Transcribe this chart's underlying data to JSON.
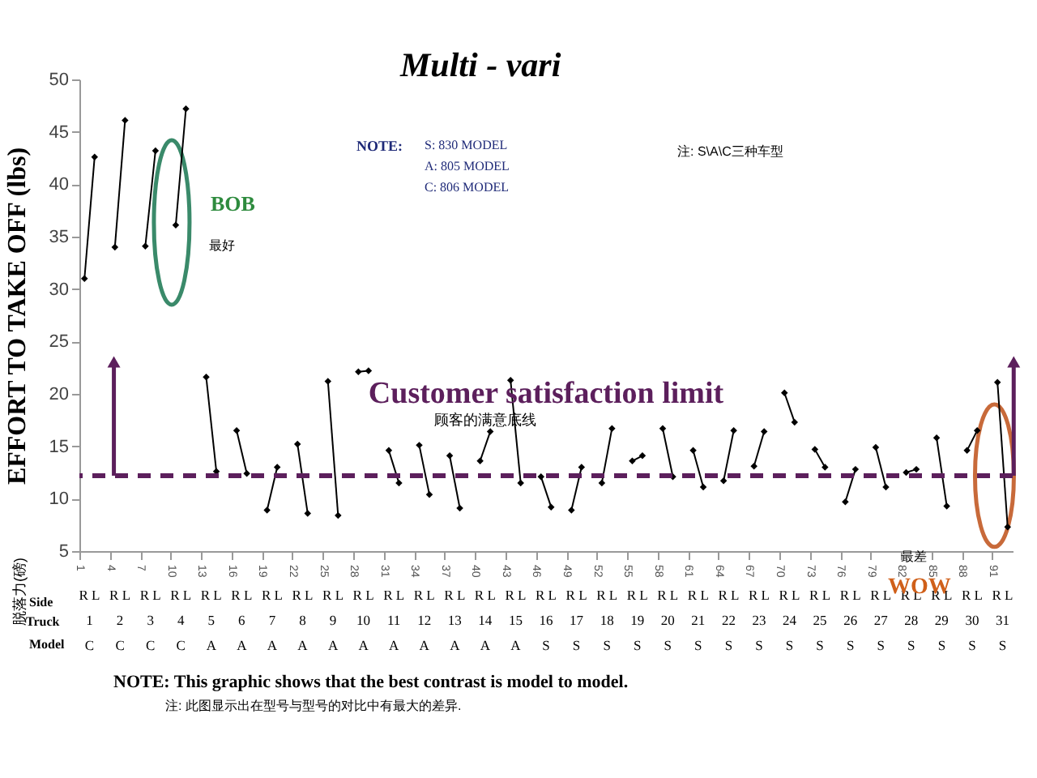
{
  "chart_data": {
    "type": "line",
    "title": "Multi - vari",
    "ylabel": "EFFORT TO TAKE OFF (lbs)",
    "xlim": [
      1,
      93
    ],
    "xticks": [
      1,
      4,
      7,
      10,
      13,
      16,
      19,
      22,
      25,
      28,
      31,
      34,
      37,
      40,
      43,
      46,
      49,
      52,
      55,
      58,
      61,
      64,
      67,
      70,
      73,
      76,
      79,
      82,
      85,
      88,
      91
    ],
    "ylim": [
      5,
      50
    ],
    "yticks": [
      5,
      10,
      15,
      20,
      25,
      30,
      35,
      40,
      45,
      50
    ],
    "grid": false,
    "marker": "diamond",
    "legend": false,
    "series": [
      {
        "color": "#000000",
        "x": [
          1.5,
          2.5
        ],
        "values": [
          31.0,
          42.6
        ]
      },
      {
        "color": "#000000",
        "x": [
          4.5,
          5.5
        ],
        "values": [
          34.0,
          46.1
        ]
      },
      {
        "color": "#000000",
        "x": [
          7.5,
          8.5
        ],
        "values": [
          34.1,
          43.2
        ]
      },
      {
        "color": "#000000",
        "x": [
          10.5,
          11.5
        ],
        "values": [
          36.1,
          47.2
        ]
      },
      {
        "color": "#000000",
        "x": [
          13.5,
          14.5
        ],
        "values": [
          21.6,
          12.6
        ]
      },
      {
        "color": "#000000",
        "x": [
          16.5,
          17.5
        ],
        "values": [
          16.5,
          12.4
        ]
      },
      {
        "color": "#000000",
        "x": [
          19.5,
          20.5
        ],
        "values": [
          8.9,
          13.0
        ]
      },
      {
        "color": "#000000",
        "x": [
          22.5,
          23.5
        ],
        "values": [
          15.2,
          8.6
        ]
      },
      {
        "color": "#000000",
        "x": [
          25.5,
          26.5
        ],
        "values": [
          21.2,
          8.4
        ]
      },
      {
        "color": "#000000",
        "x": [
          28.5,
          29.5
        ],
        "values": [
          22.1,
          22.2
        ]
      },
      {
        "color": "#000000",
        "x": [
          31.5,
          32.5
        ],
        "values": [
          14.6,
          11.5
        ]
      },
      {
        "color": "#000000",
        "x": [
          34.5,
          35.5
        ],
        "values": [
          15.1,
          10.4
        ]
      },
      {
        "color": "#000000",
        "x": [
          37.5,
          38.5
        ],
        "values": [
          14.1,
          9.1
        ]
      },
      {
        "color": "#000000",
        "x": [
          40.5,
          41.5
        ],
        "values": [
          13.6,
          16.4
        ]
      },
      {
        "color": "#000000",
        "x": [
          43.5,
          44.5
        ],
        "values": [
          21.3,
          11.5
        ]
      },
      {
        "color": "#000000",
        "x": [
          46.5,
          47.5
        ],
        "values": [
          12.1,
          9.2
        ]
      },
      {
        "color": "#000000",
        "x": [
          49.5,
          50.5
        ],
        "values": [
          8.9,
          13.0
        ]
      },
      {
        "color": "#000000",
        "x": [
          52.5,
          53.5
        ],
        "values": [
          11.5,
          16.7
        ]
      },
      {
        "color": "#000000",
        "x": [
          55.5,
          56.5
        ],
        "values": [
          13.6,
          14.1
        ]
      },
      {
        "color": "#000000",
        "x": [
          58.5,
          59.5
        ],
        "values": [
          16.7,
          12.1
        ]
      },
      {
        "color": "#000000",
        "x": [
          61.5,
          62.5
        ],
        "values": [
          14.6,
          11.1
        ]
      },
      {
        "color": "#000000",
        "x": [
          64.5,
          65.5
        ],
        "values": [
          11.7,
          16.5
        ]
      },
      {
        "color": "#000000",
        "x": [
          67.5,
          68.5
        ],
        "values": [
          13.1,
          16.4
        ]
      },
      {
        "color": "#000000",
        "x": [
          70.5,
          71.5
        ],
        "values": [
          20.1,
          17.3
        ]
      },
      {
        "color": "#000000",
        "x": [
          73.5,
          74.5
        ],
        "values": [
          14.7,
          13.0
        ]
      },
      {
        "color": "#000000",
        "x": [
          76.5,
          77.5
        ],
        "values": [
          9.7,
          12.8
        ]
      },
      {
        "color": "#000000",
        "x": [
          79.5,
          80.5
        ],
        "values": [
          14.9,
          11.1
        ]
      },
      {
        "color": "#000000",
        "x": [
          82.5,
          83.5
        ],
        "values": [
          12.5,
          12.8
        ]
      },
      {
        "color": "#000000",
        "x": [
          85.5,
          86.5
        ],
        "values": [
          15.8,
          9.3
        ]
      },
      {
        "color": "#000000",
        "x": [
          88.5,
          89.5
        ],
        "values": [
          14.6,
          16.5
        ]
      },
      {
        "color": "#000000",
        "x": [
          91.5,
          92.5
        ],
        "values": [
          21.1,
          7.3
        ]
      }
    ],
    "ref_lines": [
      {
        "axis": "y",
        "value": 12.2,
        "label": "Customer satisfaction limit",
        "color": "#5c1f5c",
        "line_style": "dashed"
      }
    ],
    "annotations": [
      "BOB",
      "最好",
      "顾客的满意底线",
      "NOTE:",
      "S: 830 MODEL",
      "A: 805 MODEL",
      "C: 806 MODEL",
      "注: S\\A\\C三种车型",
      "最差",
      "WOW",
      "NOTE: This graphic shows that the best contrast is model to model.",
      "注: 此图显示出在型号与型号的对比中有最大的差异.",
      "脱落力(磅)",
      "Side",
      "Truck",
      "Model",
      "R L",
      "1",
      "C",
      "R L",
      "2",
      "C",
      "R L",
      "3",
      "C",
      "R L",
      "4",
      "C",
      "R L",
      "5",
      "A",
      "R L",
      "6",
      "A",
      "R L",
      "7",
      "A",
      "R L",
      "8",
      "A",
      "R L",
      "9",
      "A",
      "R L",
      "10",
      "A",
      "R L",
      "11",
      "A",
      "R L",
      "12",
      "A",
      "R L",
      "13",
      "A",
      "R L",
      "14",
      "A",
      "R L",
      "15",
      "A",
      "R L",
      "16",
      "S",
      "R L",
      "17",
      "S",
      "R L",
      "18",
      "S",
      "R L",
      "19",
      "S",
      "R L",
      "20",
      "S",
      "R L",
      "21",
      "S",
      "R L",
      "22",
      "S",
      "R L",
      "23",
      "S",
      "R L",
      "24",
      "S",
      "R L",
      "25",
      "S",
      "R L",
      "26",
      "S",
      "R L",
      "27",
      "S",
      "R L",
      "28",
      "S",
      "R L",
      "29",
      "S",
      "R L",
      "30",
      "S",
      "R L",
      "31",
      "S"
    ]
  }
}
